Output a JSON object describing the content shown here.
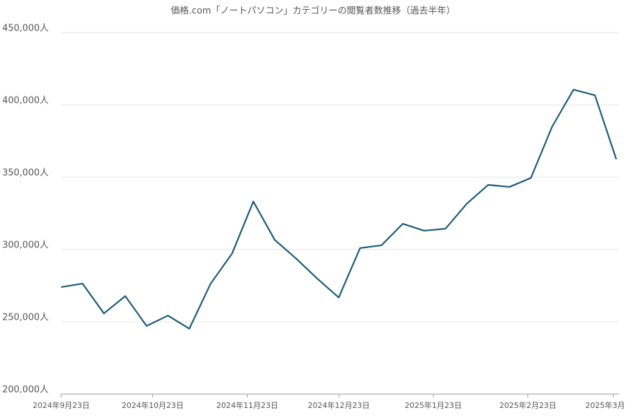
{
  "chart_data": {
    "type": "line",
    "title": "価格.com「ノートパソコン」カテゴリーの閲覧者数推移（過去半年）",
    "x": [
      "2024-09-23",
      "2024-09-30",
      "2024-10-07",
      "2024-10-14",
      "2024-10-21",
      "2024-10-28",
      "2024-11-04",
      "2024-11-11",
      "2024-11-18",
      "2024-11-25",
      "2024-12-02",
      "2024-12-09",
      "2024-12-16",
      "2024-12-23",
      "2024-12-30",
      "2025-01-06",
      "2025-01-13",
      "2025-01-20",
      "2025-01-27",
      "2025-02-03",
      "2025-02-10",
      "2025-02-17",
      "2025-02-24",
      "2025-03-03",
      "2025-03-10",
      "2025-03-17",
      "2025-03-24"
    ],
    "series": [
      {
        "color": "#1a5a78",
        "values": [
          274000,
          276400,
          255800,
          267800,
          247100,
          254300,
          245200,
          276400,
          297100,
          333200,
          306700,
          293800,
          279800,
          266800,
          301000,
          302900,
          317800,
          313000,
          314400,
          331700,
          344700,
          343300,
          349500,
          385100,
          410600,
          406700,
          362500
        ]
      }
    ],
    "xlim": [
      "2024-09-23",
      "2025-03-24"
    ],
    "xticks": [
      {
        "value": "2024-09-23",
        "label": "2024年9月23日"
      },
      {
        "value": "2024-10-23",
        "label": "2024年10月23日"
      },
      {
        "value": "2024-11-23",
        "label": "2024年11月23日"
      },
      {
        "value": "2024-12-23",
        "label": "2024年12月23日"
      },
      {
        "value": "2025-01-23",
        "label": "2025年1月23日"
      },
      {
        "value": "2025-02-23",
        "label": "2025年2月23日"
      },
      {
        "value": "2025-03-23",
        "label": "2025年3月"
      }
    ],
    "ylim": [
      200000,
      450000
    ],
    "yticks": [
      {
        "value": 200000,
        "label": "200,000人"
      },
      {
        "value": 250000,
        "label": "250,000人"
      },
      {
        "value": 300000,
        "label": "300,000人"
      },
      {
        "value": 350000,
        "label": "350,000人"
      },
      {
        "value": 400000,
        "label": "400,000人"
      },
      {
        "value": 450000,
        "label": "450,000人"
      }
    ],
    "grid": true
  }
}
